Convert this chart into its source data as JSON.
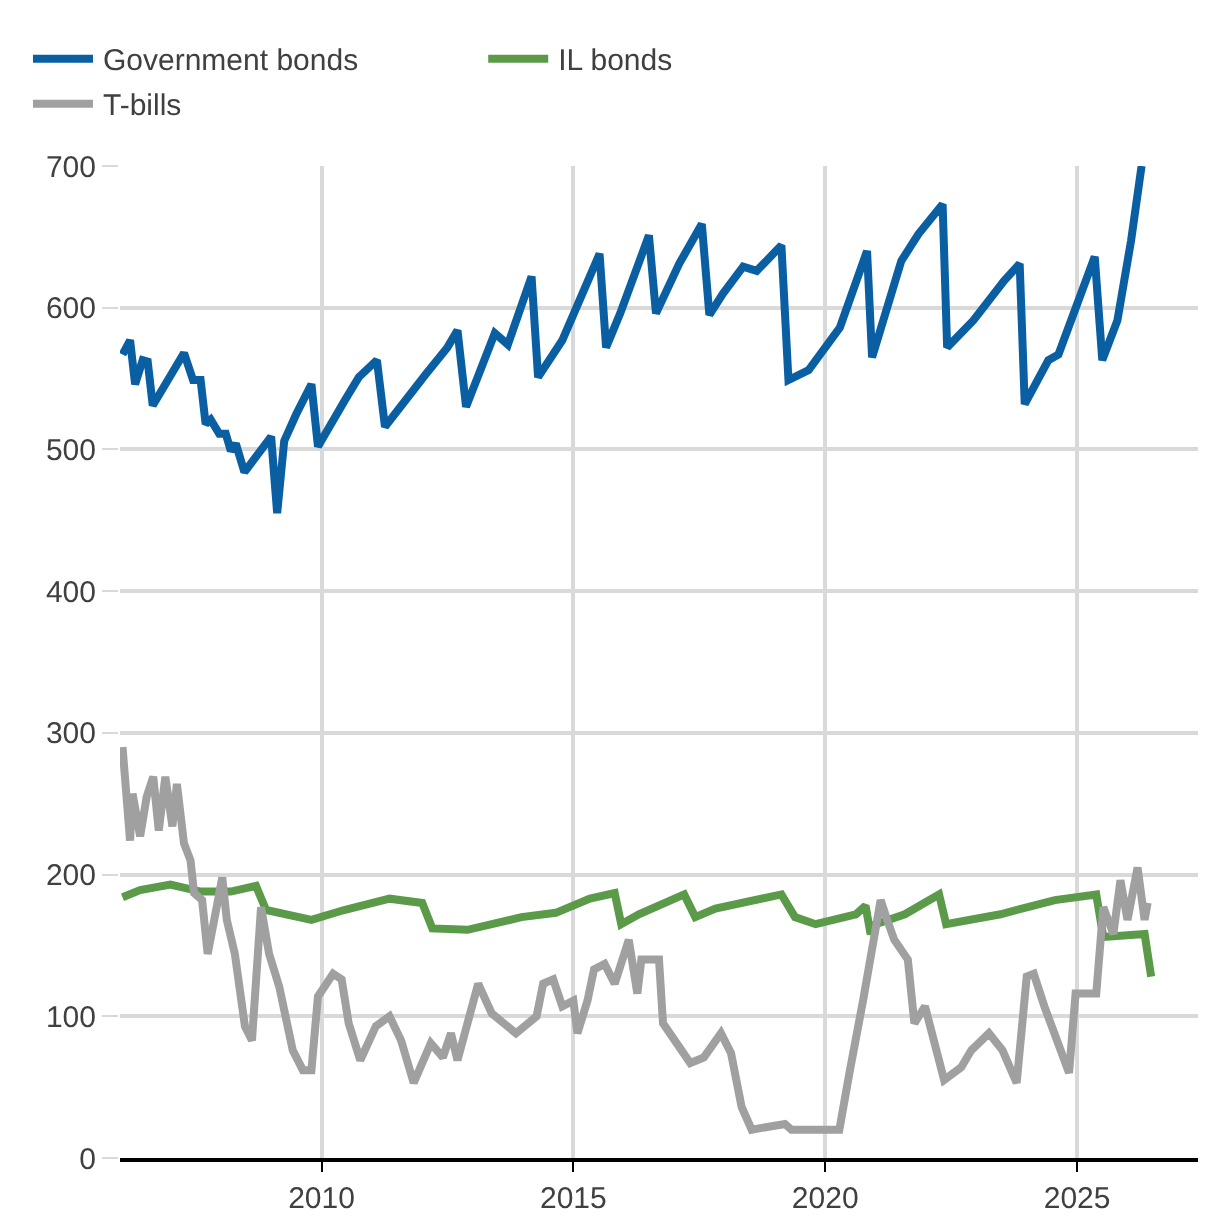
{
  "chart_data": {
    "type": "line",
    "xlim": [
      2006,
      2027.4
    ],
    "xticks": [
      2010,
      2015,
      2020,
      2025
    ],
    "ylim": [
      0,
      700
    ],
    "yticks": [
      0,
      100,
      200,
      300,
      400,
      500,
      600,
      700
    ],
    "grid": true,
    "legend": "top left",
    "marker": "none",
    "line_style": "solid",
    "series": [
      {
        "name": "Government bonds",
        "color": "#0a5fa3",
        "x": [
          2006.05,
          2006.2,
          2006.3,
          2006.45,
          2006.55,
          2006.65,
          2007.27,
          2007.45,
          2007.6,
          2007.7,
          2007.8,
          2007.97,
          2008.1,
          2008.2,
          2008.3,
          2008.47,
          2009.0,
          2009.12,
          2009.26,
          2009.5,
          2009.8,
          2009.93,
          2010.47,
          2010.74,
          2011.1,
          2011.26,
          2012.07,
          2012.5,
          2012.7,
          2012.87,
          2013.44,
          2013.7,
          2014.17,
          2014.3,
          2014.78,
          2015.52,
          2015.65,
          2015.93,
          2016.5,
          2016.64,
          2017.1,
          2017.55,
          2017.7,
          2017.97,
          2018.37,
          2018.64,
          2019.13,
          2019.27,
          2019.67,
          2020.29,
          2020.83,
          2020.93,
          2021.51,
          2021.85,
          2022.33,
          2022.42,
          2022.94,
          2023.55,
          2023.86,
          2023.96,
          2024.43,
          2024.63,
          2025.35,
          2025.5,
          2025.8,
          2026.07,
          2026.28
        ],
        "values": [
          567,
          577,
          546,
          563,
          562,
          531,
          568,
          549,
          549,
          518,
          521,
          511,
          511,
          499,
          504,
          484,
          509,
          455,
          506,
          525,
          546,
          502,
          535,
          551,
          563,
          516,
          553,
          572,
          584,
          530,
          582,
          574,
          622,
          551,
          577,
          638,
          572,
          596,
          651,
          596,
          631,
          659,
          595,
          610,
          629,
          626,
          644,
          549,
          556,
          586,
          640,
          565,
          633,
          652,
          673,
          572,
          591,
          619,
          631,
          532,
          563,
          567,
          636,
          563,
          591,
          647,
          700
        ]
      },
      {
        "name": "IL bonds",
        "color": "#5b9a48",
        "x": [
          2006.05,
          2006.4,
          2007.0,
          2007.6,
          2008.2,
          2008.7,
          2008.9,
          2009.8,
          2010.45,
          2011.35,
          2012.0,
          2012.2,
          2012.9,
          2013.97,
          2014.65,
          2015.33,
          2015.82,
          2015.95,
          2016.3,
          2017.2,
          2017.42,
          2017.82,
          2019.13,
          2019.4,
          2019.81,
          2020.61,
          2020.8,
          2020.9,
          2021.0,
          2021.58,
          2022.26,
          2022.4,
          2023.48,
          2024.56,
          2025.38,
          2025.52,
          2026.34,
          2026.47
        ],
        "values": [
          184,
          189,
          193,
          188,
          188,
          192,
          175,
          168,
          175,
          183,
          180,
          162,
          161,
          170,
          173,
          183,
          187,
          165,
          172,
          186,
          170,
          176,
          186,
          170,
          165,
          172,
          178,
          158,
          165,
          172,
          186,
          165,
          172,
          182,
          186,
          156,
          158,
          128
        ]
      },
      {
        "name": "T-bills",
        "color": "#a0a0a0",
        "x": [
          2006.05,
          2006.2,
          2006.25,
          2006.4,
          2006.53,
          2006.66,
          2006.77,
          2006.9,
          2007.04,
          2007.13,
          2007.27,
          2007.4,
          2007.47,
          2007.63,
          2007.74,
          2007.87,
          2008.03,
          2008.12,
          2008.28,
          2008.48,
          2008.62,
          2008.8,
          2008.96,
          2009.16,
          2009.43,
          2009.63,
          2009.8,
          2009.93,
          2010.23,
          2010.4,
          2010.54,
          2010.77,
          2011.08,
          2011.35,
          2011.58,
          2011.83,
          2012.17,
          2012.41,
          2012.57,
          2012.7,
          2013.11,
          2013.38,
          2013.86,
          2014.27,
          2014.4,
          2014.6,
          2014.78,
          2015.0,
          2015.08,
          2015.28,
          2015.41,
          2015.62,
          2015.82,
          2016.1,
          2016.27,
          2016.35,
          2016.7,
          2016.78,
          2017.32,
          2017.59,
          2017.93,
          2018.13,
          2018.34,
          2018.54,
          2019.2,
          2019.33,
          2020.28,
          2020.48,
          2020.75,
          2021.1,
          2021.23,
          2021.37,
          2021.64,
          2021.77,
          2021.98,
          2022.36,
          2022.7,
          2022.9,
          2023.25,
          2023.52,
          2023.8,
          2024.0,
          2024.14,
          2024.35,
          2024.84,
          2024.97,
          2025.38,
          2025.52,
          2025.72,
          2025.86,
          2026.0,
          2026.2,
          2026.34,
          2026.4
        ],
        "values": [
          290,
          224,
          257,
          227,
          255,
          269,
          231,
          269,
          234,
          264,
          222,
          210,
          187,
          182,
          144,
          168,
          198,
          168,
          144,
          93,
          83,
          177,
          144,
          121,
          76,
          62,
          62,
          114,
          130,
          126,
          95,
          69,
          93,
          100,
          83,
          53,
          81,
          71,
          88,
          69,
          123,
          102,
          88,
          100,
          123,
          126,
          107,
          111,
          88,
          111,
          133,
          137,
          123,
          154,
          116,
          140,
          140,
          95,
          67,
          71,
          88,
          74,
          36,
          20,
          24,
          20,
          20,
          60,
          111,
          182,
          168,
          154,
          140,
          95,
          107,
          55,
          64,
          76,
          88,
          76,
          53,
          128,
          130,
          107,
          60,
          116,
          116,
          177,
          158,
          196,
          168,
          205,
          168,
          180
        ]
      }
    ]
  }
}
